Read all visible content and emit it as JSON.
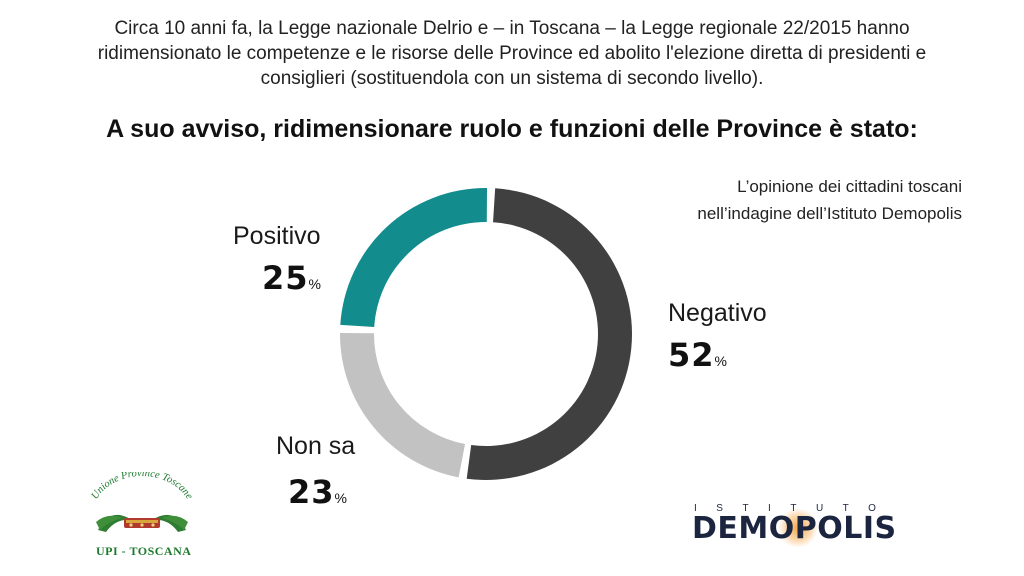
{
  "intro": {
    "line1": "Circa 10 anni fa, la Legge nazionale Delrio e – in Toscana – la Legge regionale 22/2015 hanno",
    "line2": "ridimensionato le competenze e le risorse delle Province ed abolito l'elezione diretta di presidenti e",
    "line3": "consiglieri (sostituendola con un sistema di secondo livello)."
  },
  "question": "A suo avviso, ridimensionare ruolo e funzioni delle Province è stato:",
  "source": {
    "line1": "L’opinione dei cittadini toscani",
    "line2": "nell’indagine dell’Istituto Demopolis"
  },
  "chart_data": {
    "type": "pie",
    "title": "A suo avviso, ridimensionare ruolo e funzioni delle Province è stato:",
    "categories": [
      "Negativo",
      "Non sa",
      "Positivo"
    ],
    "values": [
      52,
      23,
      25
    ],
    "value_labels": [
      "52",
      "23",
      "25"
    ],
    "unit": "%",
    "colors": [
      "#404040",
      "#c2c2c2",
      "#128c8c"
    ],
    "style": "donut"
  },
  "logos": {
    "upi_arc_text": "Unione Province Toscane",
    "upi_caption": "UPI - TOSCANA",
    "demopolis_top": "ISTITUTO",
    "demopolis_main": "DEMOPOLIS"
  }
}
